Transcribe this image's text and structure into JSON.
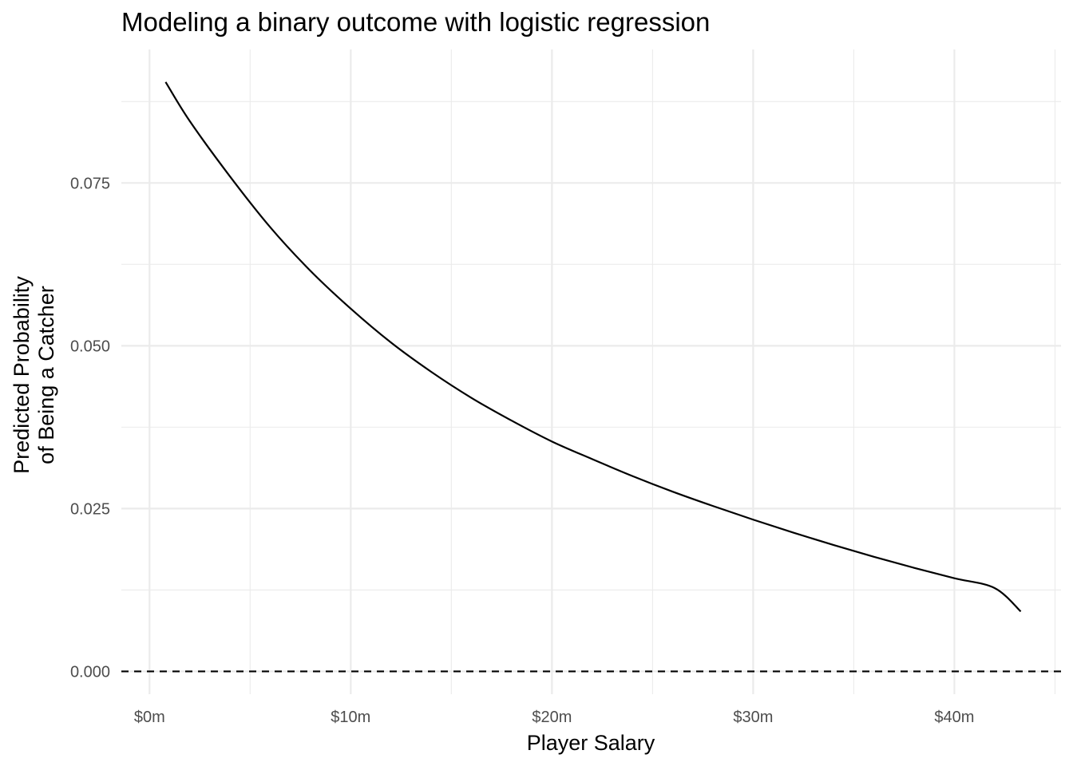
{
  "chart_data": {
    "type": "line",
    "title": "Modeling a binary outcome with logistic regression",
    "xlabel": "Player Salary",
    "ylabel_lines": [
      "Predicted Probability",
      "of Being a Catcher"
    ],
    "x_unit": "millions of dollars",
    "xlim": [
      -1.4,
      45.3
    ],
    "ylim": [
      -0.0035,
      0.0955
    ],
    "x_ticks": [
      {
        "value": 0,
        "label": "$0m"
      },
      {
        "value": 10,
        "label": "$10m"
      },
      {
        "value": 20,
        "label": "$20m"
      },
      {
        "value": 30,
        "label": "$30m"
      },
      {
        "value": 40,
        "label": "$40m"
      }
    ],
    "x_minor_ticks": [
      5,
      15,
      25,
      35,
      45
    ],
    "y_ticks": [
      {
        "value": 0,
        "label": "0.000"
      },
      {
        "value": 0.025,
        "label": "0.025"
      },
      {
        "value": 0.05,
        "label": "0.050"
      },
      {
        "value": 0.075,
        "label": "0.075"
      }
    ],
    "y_minor_ticks": [
      0.0125,
      0.0375,
      0.0625,
      0.0875
    ],
    "grid": true,
    "reference_line": {
      "y": 0,
      "style": "dashed"
    },
    "series": [
      {
        "color": "#000000",
        "x": [
          0.8,
          2,
          4,
          6,
          8,
          10,
          12,
          14,
          16,
          18,
          20,
          22,
          24,
          26,
          28,
          30,
          32,
          34,
          36,
          38,
          40,
          42,
          43.3
        ],
        "y": [
          0.0905,
          0.0845,
          0.076,
          0.0682,
          0.0615,
          0.0557,
          0.0505,
          0.046,
          0.042,
          0.0385,
          0.0353,
          0.0326,
          0.03,
          0.0276,
          0.0254,
          0.0233,
          0.0213,
          0.0194,
          0.0176,
          0.0159,
          0.0143,
          0.0128,
          0.0092
        ]
      }
    ]
  }
}
